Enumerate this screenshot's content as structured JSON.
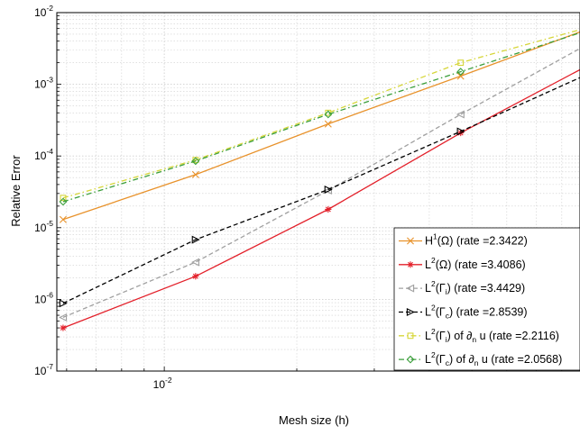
{
  "chart_data": {
    "type": "line",
    "title": "",
    "xlabel": "Mesh size (h)",
    "ylabel": "Relative Error",
    "x_scale": "log",
    "y_scale": "log",
    "xlim": [
      0.0057,
      0.088
    ],
    "ylim": [
      1e-07,
      0.01
    ],
    "grid": true,
    "legend_position": "bottom-right",
    "x_tick_labels": [
      {
        "value": 0.01,
        "base": "10",
        "exp": "-2"
      }
    ],
    "y_tick_labels": [
      {
        "value": 0.01,
        "base": "10",
        "exp": "-2"
      },
      {
        "value": 0.001,
        "base": "10",
        "exp": "-3"
      },
      {
        "value": 0.0001,
        "base": "10",
        "exp": "-4"
      },
      {
        "value": 1e-05,
        "base": "10",
        "exp": "-5"
      },
      {
        "value": 1e-06,
        "base": "10",
        "exp": "-6"
      },
      {
        "value": 1e-07,
        "base": "10",
        "exp": "-7"
      }
    ],
    "x": [
      0.00589,
      0.01178,
      0.02357,
      0.04714,
      0.09428
    ],
    "series": [
      {
        "legend": {
          "prefix": "H",
          "sup": "1",
          "arg": "(Ω)",
          "sub": "",
          "suffix": "",
          "rate": " (rate =2.3422)"
        },
        "color": "#e8922b",
        "dash": "solid",
        "marker": "x",
        "values": [
          1.3e-05,
          5.5e-05,
          0.00028,
          0.0013,
          0.0063
        ]
      },
      {
        "legend": {
          "prefix": "L",
          "sup": "2",
          "arg": "(Ω)",
          "sub": "",
          "suffix": "",
          "rate": " (rate =3.4086)"
        },
        "color": "#e3202a",
        "dash": "solid",
        "marker": "star",
        "values": [
          4e-07,
          2.1e-06,
          1.8e-05,
          0.00021,
          0.002
        ]
      },
      {
        "legend": {
          "prefix": "L",
          "sup": "2",
          "arg": "(Γ",
          "sub": "i",
          "suffix": ")",
          "rate": " (rate =3.4429)"
        },
        "color": "#a0a0a0",
        "dash": "dashed",
        "marker": "triangle-left",
        "values": [
          5.6e-07,
          3.3e-06,
          3.3e-05,
          0.00038,
          0.004
        ]
      },
      {
        "legend": {
          "prefix": "L",
          "sup": "2",
          "arg": "(Γ",
          "sub": "c",
          "suffix": ")",
          "rate": " (rate =2.8539)"
        },
        "color": "#000000",
        "dash": "dashed",
        "marker": "triangle-right",
        "values": [
          8.8e-07,
          6.8e-06,
          3.4e-05,
          0.00022,
          0.0015
        ]
      },
      {
        "legend": {
          "prefix": "L",
          "sup": "2",
          "arg": "(Γ",
          "sub": "i",
          "suffix": ") of ∂",
          "sub2": "n",
          "after": " u",
          "rate": " (rate =2.2116)"
        },
        "color": "#d6d63a",
        "dash": "dashdot",
        "marker": "square",
        "values": [
          2.6e-05,
          8.8e-05,
          0.0004,
          0.002,
          0.0065
        ]
      },
      {
        "legend": {
          "prefix": "L",
          "sup": "2",
          "arg": "(Γ",
          "sub": "c",
          "suffix": ") of ∂",
          "sub2": "n",
          "after": " u",
          "rate": " (rate =2.0568)"
        },
        "color": "#3a9e3a",
        "dash": "dashdot",
        "marker": "diamond",
        "values": [
          2.3e-05,
          8.5e-05,
          0.00038,
          0.0015,
          0.006
        ]
      }
    ]
  }
}
